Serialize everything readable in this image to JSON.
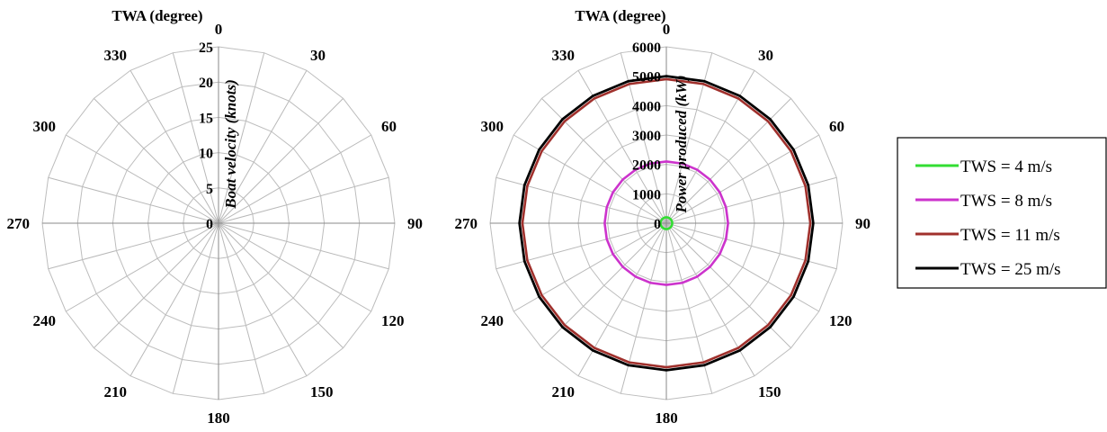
{
  "chart_data": [
    {
      "type": "radar",
      "angle_title": "TWA (degree)",
      "radial_label": "Boat velocity (knots)",
      "angle_ticks": [
        "0",
        "30",
        "60",
        "90",
        "120",
        "150",
        "180",
        "210",
        "240",
        "270",
        "300",
        "330"
      ],
      "radial_ticks": [
        "0",
        "5",
        "10",
        "15",
        "20",
        "25"
      ],
      "rlim": [
        0,
        25
      ],
      "angle_step_deg": 15,
      "grid": true,
      "series": []
    },
    {
      "type": "radar",
      "angle_title": "TWA (degree)",
      "radial_label": "Power produced (kW)",
      "angle_ticks": [
        "0",
        "30",
        "60",
        "90",
        "120",
        "150",
        "180",
        "210",
        "240",
        "270",
        "300",
        "330"
      ],
      "radial_ticks": [
        "0",
        "1000",
        "2000",
        "3000",
        "4000",
        "5000",
        "6000"
      ],
      "rlim": [
        0,
        6000
      ],
      "angle_step_deg": 15,
      "grid": true,
      "legend_position": "right",
      "series": [
        {
          "name": "TWS = 4 m/s",
          "color": "#33dd33",
          "value": 200
        },
        {
          "name": "TWS = 8 m/s",
          "color": "#cc33cc",
          "value": 2100
        },
        {
          "name": "TWS = 11 m/s",
          "color": "#a0302c",
          "value": 4900
        },
        {
          "name": "TWS = 25 m/s",
          "color": "#000000",
          "value": 5000
        }
      ]
    }
  ]
}
